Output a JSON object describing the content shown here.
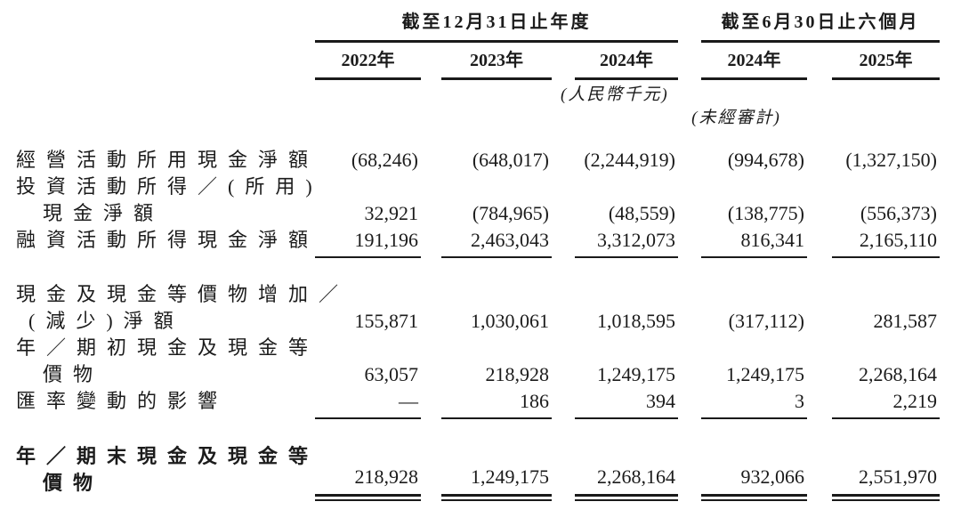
{
  "table": {
    "group1": "截至12月31日止年度",
    "group2": "截至6月30日止六個月",
    "years": [
      "2022年",
      "2023年",
      "2024年",
      "2024年",
      "2025年"
    ],
    "unit_note": "(人民幣千元)",
    "unaudited_note": "(未經審計)",
    "rows": [
      {
        "l1": "經營活動所用現金淨額",
        "v": [
          "(68,246)",
          "(648,017)",
          "(2,244,919)",
          "(994,678)",
          "(1,327,150)"
        ]
      },
      {
        "l1": "投資活動所得／(所用)",
        "l2": "現金淨額",
        "v": [
          "32,921",
          "(784,965)",
          "(48,559)",
          "(138,775)",
          "(556,373)"
        ]
      },
      {
        "l1": "融資活動所得現金淨額",
        "v": [
          "191,196",
          "2,463,043",
          "3,312,073",
          "816,341",
          "2,165,110"
        ]
      },
      {
        "l1": "現金及現金等價物增加／",
        "l2": "(減少)淨額",
        "v": [
          "155,871",
          "1,030,061",
          "1,018,595",
          "(317,112)",
          "281,587"
        ]
      },
      {
        "l1": "年／期初現金及現金等",
        "l2": "價物",
        "v": [
          "63,057",
          "218,928",
          "1,249,175",
          "1,249,175",
          "2,268,164"
        ]
      },
      {
        "l1": "匯率變動的影響",
        "v": [
          "—",
          "186",
          "394",
          "3",
          "2,219"
        ]
      },
      {
        "l1": "年／期末現金及現金等",
        "l2": "價物",
        "v": [
          "218,928",
          "1,249,175",
          "2,268,164",
          "932,066",
          "2,551,970"
        ]
      }
    ],
    "colors": {
      "text": "#1b1b1b",
      "rule": "#1a1a1a",
      "background": "#ffffff"
    }
  }
}
